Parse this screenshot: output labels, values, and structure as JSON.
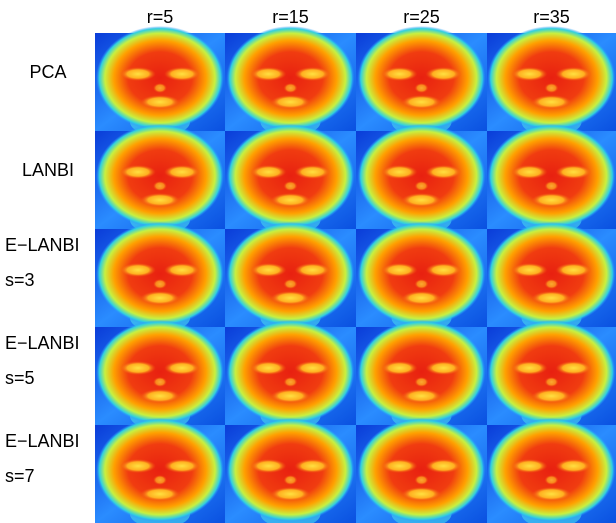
{
  "columns": [
    "r=5",
    "r=15",
    "r=25",
    "r=35"
  ],
  "rows": [
    {
      "label": "PCA"
    },
    {
      "label": "LANBI"
    },
    {
      "label": "E−LANBI",
      "sublabel": "s=3"
    },
    {
      "label": "E−LANBI",
      "sublabel": "s=5"
    },
    {
      "label": "E−LANBI",
      "sublabel": "s=7"
    }
  ]
}
